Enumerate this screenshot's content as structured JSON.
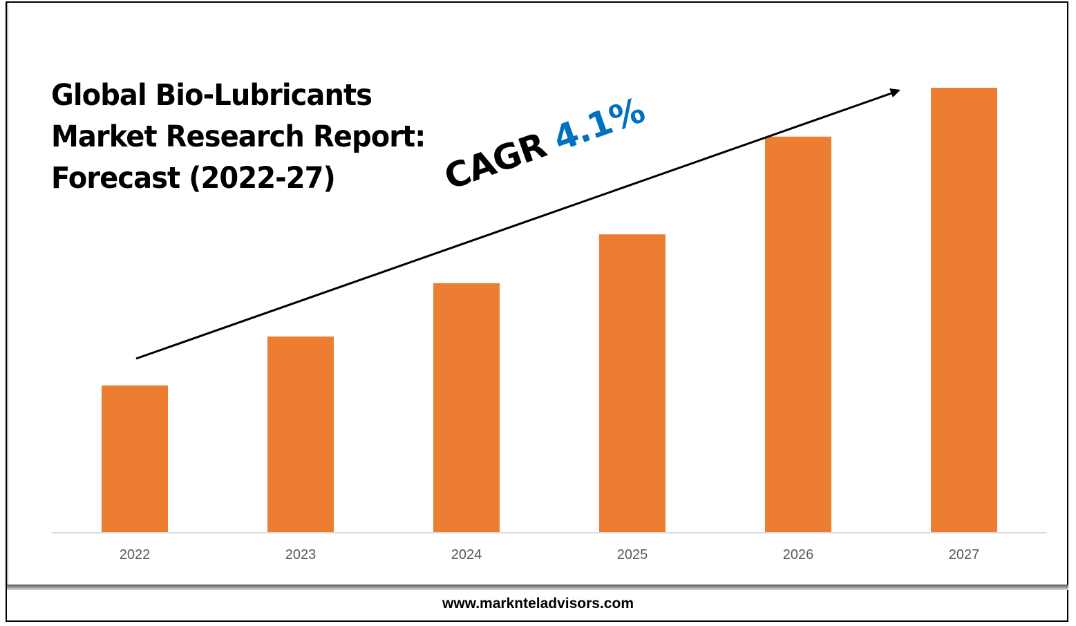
{
  "title_lines": [
    "Global Bio-Lubricants",
    "Market Research Report:",
    "Forecast (2022-27)"
  ],
  "annotation": {
    "label": "CAGR",
    "value": "4.1%",
    "value_color": "#0070c0"
  },
  "footer": "www.marknteladvisors.com",
  "chart_data": {
    "type": "bar",
    "title": "Global Bio-Lubricants Market Research Report: Forecast (2022-27)",
    "categories": [
      "2022",
      "2023",
      "2024",
      "2025",
      "2026",
      "2027"
    ],
    "values": [
      33,
      44,
      56,
      67,
      89,
      100
    ],
    "value_units": "relative (no axis printed)",
    "bar_color": "#ed7d31",
    "xlabel": "",
    "ylabel": "",
    "grid": false,
    "legend": "none",
    "trend_arrow": true
  }
}
